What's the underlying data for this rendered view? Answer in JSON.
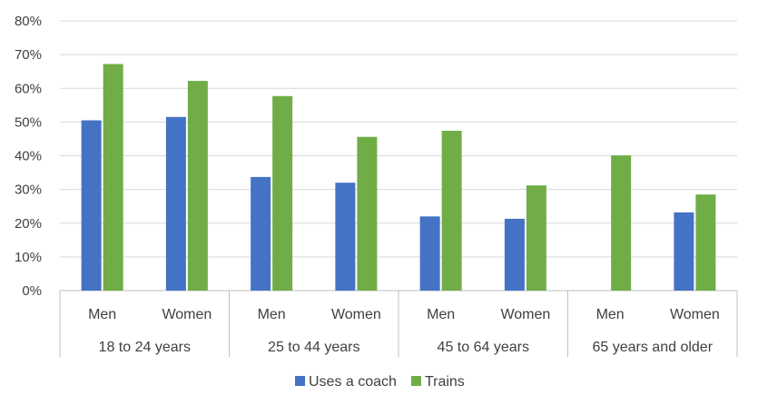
{
  "chart_data": {
    "type": "bar",
    "groups": [
      {
        "label": "18 to 24 years",
        "categories": [
          "Men",
          "Women"
        ]
      },
      {
        "label": "25 to 44 years",
        "categories": [
          "Men",
          "Women"
        ]
      },
      {
        "label": "45 to 64 years",
        "categories": [
          "Men",
          "Women"
        ]
      },
      {
        "label": "65 years and older",
        "categories": [
          "Men",
          "Women"
        ]
      }
    ],
    "series": [
      {
        "name": "Uses a coach",
        "color": "#4472C4",
        "values": [
          50.5,
          51.5,
          33.7,
          32.0,
          22.0,
          21.3,
          null,
          23.2
        ]
      },
      {
        "name": "Trains",
        "color": "#70AD47",
        "values": [
          67.2,
          62.2,
          57.7,
          45.6,
          47.4,
          31.2,
          40.1,
          28.5
        ]
      }
    ],
    "y_ticks": [
      "0%",
      "10%",
      "20%",
      "30%",
      "40%",
      "50%",
      "60%",
      "70%",
      "80%"
    ],
    "ylim": [
      0,
      80
    ],
    "grid": true,
    "legend_position": "bottom"
  }
}
